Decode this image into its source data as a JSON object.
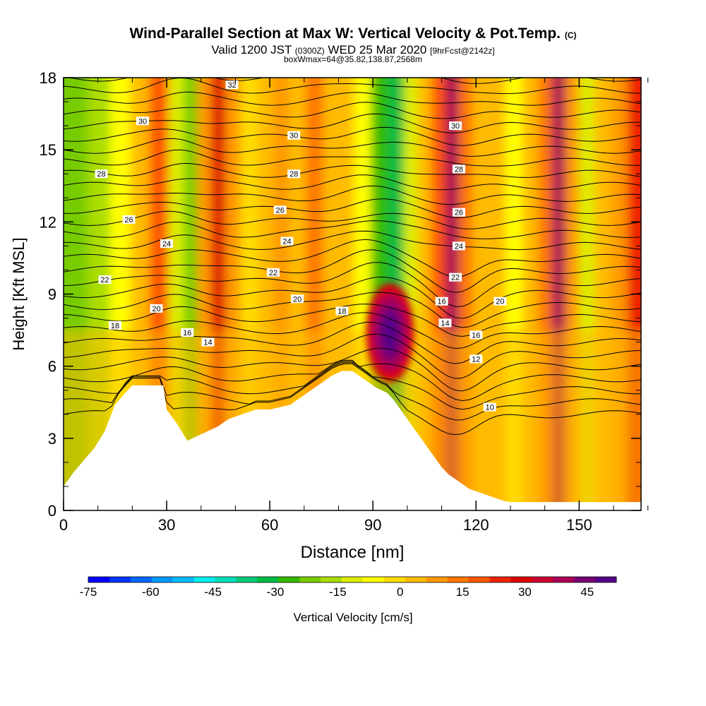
{
  "header": {
    "title_main": "Wind-Parallel Section at Max W: Vertical Velocity & Pot.Temp.",
    "title_mark": "(C)",
    "valid_a": "Valid 1200 JST",
    "valid_b": "(0300Z)",
    "valid_c": "WED 25 Mar 2020",
    "valid_d": "[9hrFcst@2142z]",
    "box_line": "boxWmax=64@35.82,138.87,2568m"
  },
  "chart_data": {
    "type": "heatmap",
    "xlabel": "Distance [nm]",
    "ylabel": "Height [Kft MSL]",
    "xlim": [
      0,
      168
    ],
    "ylim": [
      0,
      18
    ],
    "x_ticks": [
      "0",
      "30",
      "60",
      "90",
      "120",
      "150"
    ],
    "y_ticks": [
      "0",
      "3",
      "6",
      "9",
      "12",
      "15",
      "18"
    ],
    "colorbar": {
      "label": "Vertical Velocity [cm/s]",
      "range": [
        -75,
        52
      ],
      "tick_labels": [
        "-75",
        "-60",
        "-45",
        "-30",
        "-15",
        "0",
        "15",
        "30",
        "45"
      ],
      "colors": [
        "#0000ff",
        "#0033ff",
        "#0066ff",
        "#0099ff",
        "#00bbff",
        "#00eeee",
        "#00ddbb",
        "#00cc77",
        "#00bb44",
        "#33bb00",
        "#77cc00",
        "#aadd00",
        "#ddee00",
        "#ffff00",
        "#ffdd00",
        "#ffbb00",
        "#ff9900",
        "#ff7700",
        "#ff5500",
        "#ee2200",
        "#dd0000",
        "#cc0033",
        "#aa0055",
        "#770077",
        "#550088"
      ]
    },
    "terrain_profile": {
      "x": [
        0,
        3,
        6,
        9,
        12,
        15,
        18,
        20,
        25,
        29,
        30,
        33,
        36,
        42,
        45,
        48,
        52,
        56,
        60,
        66,
        70,
        75,
        78,
        81,
        84,
        87,
        88,
        91,
        94,
        96,
        98,
        100,
        102,
        104,
        106,
        108,
        110,
        112,
        114,
        116,
        118,
        120,
        122,
        124,
        126,
        128,
        130,
        135,
        140,
        145,
        150,
        155,
        160,
        165,
        168
      ],
      "height_kft": [
        1.0,
        1.6,
        2.1,
        2.6,
        3.3,
        4.4,
        4.9,
        5.2,
        5.2,
        5.2,
        4.2,
        3.6,
        2.9,
        3.3,
        3.5,
        3.8,
        4.0,
        4.2,
        4.2,
        4.4,
        4.8,
        5.3,
        5.6,
        5.8,
        5.8,
        5.5,
        5.4,
        5.1,
        4.9,
        4.6,
        4.2,
        3.8,
        3.4,
        3.0,
        2.6,
        2.2,
        1.8,
        1.5,
        1.3,
        1.1,
        0.9,
        0.8,
        0.7,
        0.6,
        0.5,
        0.4,
        0.35,
        0.35,
        0.35,
        0.35,
        0.35,
        0.35,
        0.35,
        0.35,
        0.35
      ]
    },
    "velocity_columns": [
      {
        "x": 4,
        "w_cm_s": -22
      },
      {
        "x": 10,
        "w_cm_s": -16
      },
      {
        "x": 17,
        "w_cm_s": -8
      },
      {
        "x": 22,
        "w_cm_s": 6
      },
      {
        "x": 28,
        "w_cm_s": 18
      },
      {
        "x": 33,
        "w_cm_s": -10
      },
      {
        "x": 37,
        "w_cm_s": -22
      },
      {
        "x": 41,
        "w_cm_s": 10
      },
      {
        "x": 45,
        "w_cm_s": 32
      },
      {
        "x": 49,
        "w_cm_s": 10
      },
      {
        "x": 54,
        "w_cm_s": -2
      },
      {
        "x": 59,
        "w_cm_s": 2
      },
      {
        "x": 63,
        "w_cm_s": 10
      },
      {
        "x": 68,
        "w_cm_s": 6
      },
      {
        "x": 73,
        "w_cm_s": 14
      },
      {
        "x": 78,
        "w_cm_s": 4
      },
      {
        "x": 82,
        "w_cm_s": 6
      },
      {
        "x": 87,
        "w_cm_s": -6
      },
      {
        "x": 92,
        "w_cm_s": -26
      },
      {
        "x": 97,
        "w_cm_s": -32
      },
      {
        "x": 101,
        "w_cm_s": -14
      },
      {
        "x": 105,
        "w_cm_s": 4
      },
      {
        "x": 109,
        "w_cm_s": 18
      },
      {
        "x": 113,
        "w_cm_s": 40
      },
      {
        "x": 117,
        "w_cm_s": 14
      },
      {
        "x": 121,
        "w_cm_s": 6
      },
      {
        "x": 126,
        "w_cm_s": 2
      },
      {
        "x": 131,
        "w_cm_s": -6
      },
      {
        "x": 136,
        "w_cm_s": 6
      },
      {
        "x": 140,
        "w_cm_s": 16
      },
      {
        "x": 144,
        "w_cm_s": 44
      },
      {
        "x": 148,
        "w_cm_s": 10
      },
      {
        "x": 152,
        "w_cm_s": -12
      },
      {
        "x": 157,
        "w_cm_s": 4
      },
      {
        "x": 162,
        "w_cm_s": 12
      },
      {
        "x": 166,
        "w_cm_s": 24
      }
    ],
    "updraft_core": {
      "x": 95,
      "y_kft": 7.4,
      "w_cm_s": 52
    },
    "isentrope_labels": [
      {
        "text": "32",
        "x": 49,
        "y_kft": 17.7
      },
      {
        "text": "30",
        "x": 23,
        "y_kft": 16.2
      },
      {
        "text": "30",
        "x": 67,
        "y_kft": 15.6
      },
      {
        "text": "30",
        "x": 114,
        "y_kft": 16.0
      },
      {
        "text": "28",
        "x": 11,
        "y_kft": 14.0
      },
      {
        "text": "28",
        "x": 67,
        "y_kft": 14.0
      },
      {
        "text": "28",
        "x": 115,
        "y_kft": 14.2
      },
      {
        "text": "26",
        "x": 19,
        "y_kft": 12.1
      },
      {
        "text": "26",
        "x": 63,
        "y_kft": 12.5
      },
      {
        "text": "26",
        "x": 115,
        "y_kft": 12.4
      },
      {
        "text": "24",
        "x": 30,
        "y_kft": 11.1
      },
      {
        "text": "24",
        "x": 65,
        "y_kft": 11.2
      },
      {
        "text": "24",
        "x": 115,
        "y_kft": 11.0
      },
      {
        "text": "22",
        "x": 12,
        "y_kft": 9.6
      },
      {
        "text": "22",
        "x": 61,
        "y_kft": 9.9
      },
      {
        "text": "22",
        "x": 114,
        "y_kft": 9.7
      },
      {
        "text": "20",
        "x": 27,
        "y_kft": 8.4
      },
      {
        "text": "20",
        "x": 68,
        "y_kft": 8.8
      },
      {
        "text": "20",
        "x": 127,
        "y_kft": 8.7
      },
      {
        "text": "18",
        "x": 15,
        "y_kft": 7.7
      },
      {
        "text": "18",
        "x": 81,
        "y_kft": 8.3
      },
      {
        "text": "16",
        "x": 36,
        "y_kft": 7.4
      },
      {
        "text": "16",
        "x": 110,
        "y_kft": 8.7
      },
      {
        "text": "16",
        "x": 120,
        "y_kft": 7.3
      },
      {
        "text": "14",
        "x": 42,
        "y_kft": 7.0
      },
      {
        "text": "14",
        "x": 111,
        "y_kft": 7.8
      },
      {
        "text": "12",
        "x": 120,
        "y_kft": 6.3
      },
      {
        "text": "10",
        "x": 124,
        "y_kft": 4.3
      }
    ]
  }
}
